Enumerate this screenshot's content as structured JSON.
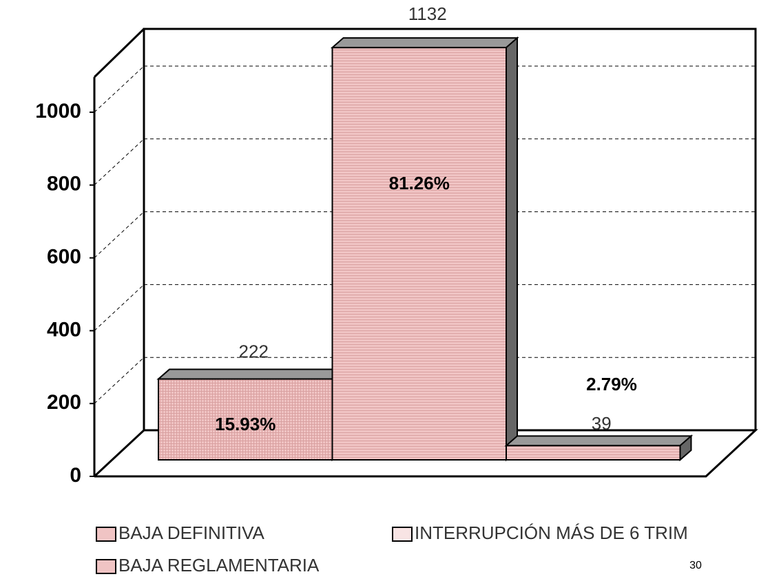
{
  "chart_data": {
    "type": "bar3d",
    "series": [
      {
        "name": "BAJA DEFINITIVA",
        "color": "#f0c4c4",
        "values": [
          222
        ],
        "percent": 15.93,
        "percent_label": "15.93%"
      },
      {
        "name": "BAJA REGLAMENTARIA",
        "color": "#f0c4c4",
        "values": [
          1132
        ],
        "percent": 81.26,
        "percent_label": "81.26%"
      },
      {
        "name": "INTERRUPCIÓN MÁS DE 6 TRIM",
        "color": "#f8e4e4",
        "values": [
          39
        ],
        "percent": 2.79,
        "percent_label": "2.79%"
      }
    ],
    "ylim": [
      0,
      1100
    ],
    "yticks": [
      0,
      200,
      400,
      600,
      800,
      1000
    ],
    "grid": true
  },
  "page_number": 30
}
